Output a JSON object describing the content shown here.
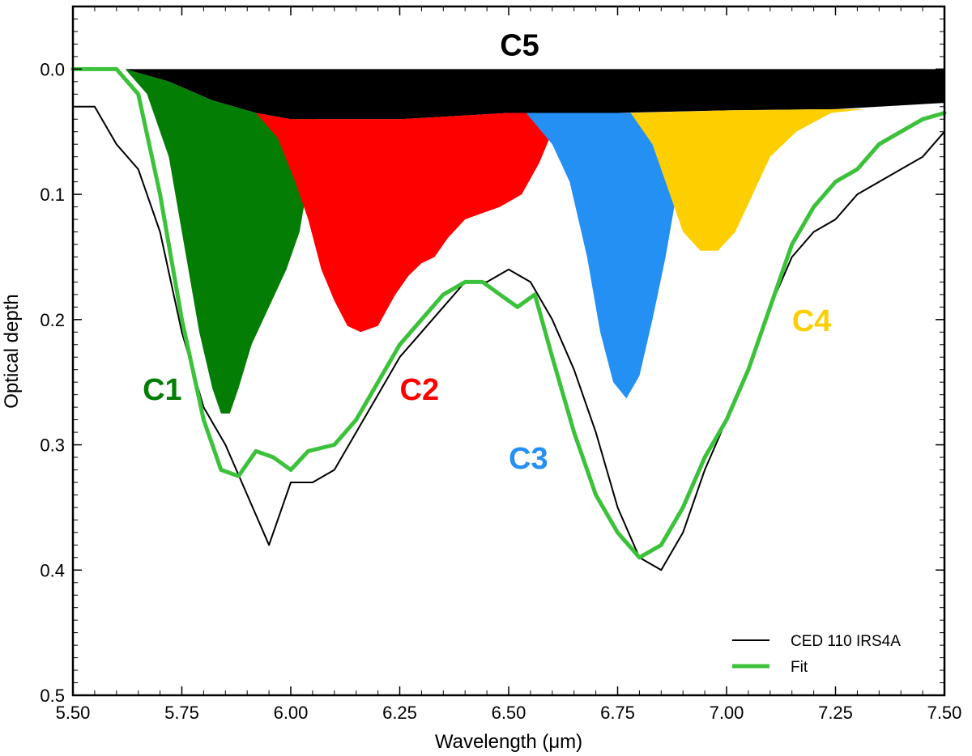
{
  "chart_data": {
    "type": "line",
    "xlabel": "Wavelength (μm)",
    "ylabel": "Optical depth",
    "xlim": [
      5.5,
      7.5
    ],
    "ylim": [
      0.5,
      -0.05
    ],
    "y_inverted": true,
    "grid": false,
    "legend_position": "bottom-right",
    "x_ticks": [
      5.5,
      5.75,
      6.0,
      6.25,
      6.5,
      6.75,
      7.0,
      7.25,
      7.5
    ],
    "x_tick_labels": [
      "5.50",
      "5.75",
      "6.00",
      "6.25",
      "6.50",
      "6.75",
      "7.00",
      "7.25",
      "7.50"
    ],
    "y_ticks": [
      0.0,
      0.1,
      0.2,
      0.3,
      0.4,
      0.5
    ],
    "y_tick_labels": [
      "0.0",
      "0.1",
      "0.2",
      "0.3",
      "0.4",
      "0.5"
    ],
    "components": [
      {
        "name": "C5",
        "color": "#000000",
        "label_x": 6.48,
        "label_y": -0.02,
        "top": [
          [
            5.5,
            0
          ],
          [
            7.5,
            0
          ]
        ],
        "bottom": [
          [
            5.5,
            0
          ],
          [
            5.62,
            0.0
          ],
          [
            5.72,
            0.01
          ],
          [
            5.82,
            0.025
          ],
          [
            5.92,
            0.035
          ],
          [
            6.0,
            0.04
          ],
          [
            6.25,
            0.04
          ],
          [
            6.5,
            0.035
          ],
          [
            6.75,
            0.035
          ],
          [
            7.0,
            0.033
          ],
          [
            7.25,
            0.032
          ],
          [
            7.5,
            0.027
          ]
        ]
      },
      {
        "name": "C1",
        "color": "#047d04",
        "label_x": 5.66,
        "label_y": 0.255,
        "top": [
          [
            5.62,
            0.0
          ],
          [
            5.72,
            0.01
          ],
          [
            5.82,
            0.025
          ],
          [
            5.92,
            0.035
          ],
          [
            5.98,
            0.04
          ],
          [
            6.02,
            0.04
          ]
        ],
        "bottom": [
          [
            5.62,
            0.0
          ],
          [
            5.67,
            0.02
          ],
          [
            5.72,
            0.07
          ],
          [
            5.76,
            0.15
          ],
          [
            5.79,
            0.21
          ],
          [
            5.82,
            0.255
          ],
          [
            5.84,
            0.275
          ],
          [
            5.86,
            0.275
          ],
          [
            5.88,
            0.255
          ],
          [
            5.91,
            0.22
          ],
          [
            5.95,
            0.19
          ],
          [
            5.99,
            0.16
          ],
          [
            6.02,
            0.13
          ],
          [
            6.04,
            0.09
          ],
          [
            6.06,
            0.04
          ]
        ]
      },
      {
        "name": "C2",
        "color": "#ff0000",
        "label_x": 6.25,
        "label_y": 0.255,
        "top": [
          [
            5.92,
            0.035
          ],
          [
            6.0,
            0.04
          ],
          [
            6.25,
            0.04
          ],
          [
            6.5,
            0.035
          ],
          [
            6.58,
            0.035
          ]
        ],
        "bottom": [
          [
            5.92,
            0.035
          ],
          [
            5.97,
            0.055
          ],
          [
            6.01,
            0.09
          ],
          [
            6.04,
            0.12
          ],
          [
            6.07,
            0.16
          ],
          [
            6.1,
            0.185
          ],
          [
            6.13,
            0.205
          ],
          [
            6.16,
            0.21
          ],
          [
            6.2,
            0.205
          ],
          [
            6.24,
            0.18
          ],
          [
            6.27,
            0.165
          ],
          [
            6.3,
            0.155
          ],
          [
            6.33,
            0.15
          ],
          [
            6.36,
            0.135
          ],
          [
            6.4,
            0.12
          ],
          [
            6.44,
            0.115
          ],
          [
            6.48,
            0.11
          ],
          [
            6.53,
            0.1
          ],
          [
            6.57,
            0.075
          ],
          [
            6.6,
            0.05
          ],
          [
            6.58,
            0.035
          ]
        ]
      },
      {
        "name": "C3",
        "color": "#2490f4",
        "label_x": 6.5,
        "label_y": 0.31,
        "top": [
          [
            6.54,
            0.035
          ],
          [
            6.75,
            0.035
          ],
          [
            6.89,
            0.035
          ]
        ],
        "bottom": [
          [
            6.54,
            0.035
          ],
          [
            6.6,
            0.06
          ],
          [
            6.64,
            0.09
          ],
          [
            6.68,
            0.15
          ],
          [
            6.71,
            0.21
          ],
          [
            6.74,
            0.25
          ],
          [
            6.77,
            0.263
          ],
          [
            6.8,
            0.245
          ],
          [
            6.83,
            0.2
          ],
          [
            6.86,
            0.15
          ],
          [
            6.88,
            0.11
          ],
          [
            6.89,
            0.035
          ]
        ]
      },
      {
        "name": "C4",
        "color": "#fdcf00",
        "label_x": 7.15,
        "label_y": 0.2,
        "top": [
          [
            6.78,
            0.035
          ],
          [
            7.0,
            0.033
          ],
          [
            7.25,
            0.032
          ],
          [
            7.32,
            0.032
          ]
        ],
        "bottom": [
          [
            6.78,
            0.035
          ],
          [
            6.83,
            0.06
          ],
          [
            6.87,
            0.1
          ],
          [
            6.9,
            0.13
          ],
          [
            6.94,
            0.145
          ],
          [
            6.98,
            0.145
          ],
          [
            7.02,
            0.13
          ],
          [
            7.06,
            0.1
          ],
          [
            7.1,
            0.07
          ],
          [
            7.16,
            0.05
          ],
          [
            7.24,
            0.035
          ],
          [
            7.32,
            0.032
          ]
        ]
      }
    ],
    "series": [
      {
        "name": "CED 110 IRS4A",
        "color": "#000000",
        "x": [
          5.5,
          5.55,
          5.6,
          5.65,
          5.7,
          5.75,
          5.8,
          5.85,
          5.9,
          5.95,
          6.0,
          6.05,
          6.1,
          6.15,
          6.2,
          6.25,
          6.3,
          6.35,
          6.4,
          6.45,
          6.5,
          6.55,
          6.6,
          6.65,
          6.7,
          6.75,
          6.8,
          6.85,
          6.9,
          6.95,
          7.0,
          7.05,
          7.1,
          7.15,
          7.2,
          7.25,
          7.3,
          7.35,
          7.4,
          7.45,
          7.5
        ],
        "y": [
          0.03,
          0.03,
          0.06,
          0.08,
          0.13,
          0.21,
          0.27,
          0.3,
          0.34,
          0.38,
          0.33,
          0.33,
          0.32,
          0.29,
          0.26,
          0.23,
          0.21,
          0.19,
          0.17,
          0.17,
          0.16,
          0.17,
          0.2,
          0.24,
          0.29,
          0.35,
          0.39,
          0.4,
          0.37,
          0.32,
          0.28,
          0.24,
          0.19,
          0.15,
          0.13,
          0.12,
          0.1,
          0.09,
          0.08,
          0.07,
          0.05
        ]
      },
      {
        "name": "Fit",
        "color": "#3cc13b",
        "x": [
          5.5,
          5.6,
          5.65,
          5.7,
          5.75,
          5.8,
          5.84,
          5.88,
          5.92,
          5.96,
          6.0,
          6.04,
          6.1,
          6.15,
          6.2,
          6.25,
          6.3,
          6.35,
          6.4,
          6.44,
          6.48,
          6.52,
          6.56,
          6.6,
          6.65,
          6.7,
          6.75,
          6.8,
          6.85,
          6.9,
          6.95,
          7.0,
          7.05,
          7.1,
          7.15,
          7.2,
          7.25,
          7.3,
          7.35,
          7.4,
          7.45,
          7.5
        ],
        "y": [
          0.0,
          0.0,
          0.02,
          0.1,
          0.2,
          0.28,
          0.32,
          0.325,
          0.305,
          0.31,
          0.32,
          0.305,
          0.3,
          0.28,
          0.25,
          0.22,
          0.2,
          0.18,
          0.17,
          0.17,
          0.18,
          0.19,
          0.18,
          0.23,
          0.29,
          0.34,
          0.37,
          0.39,
          0.38,
          0.35,
          0.31,
          0.28,
          0.24,
          0.19,
          0.14,
          0.11,
          0.09,
          0.08,
          0.06,
          0.05,
          0.04,
          0.035
        ]
      }
    ]
  }
}
